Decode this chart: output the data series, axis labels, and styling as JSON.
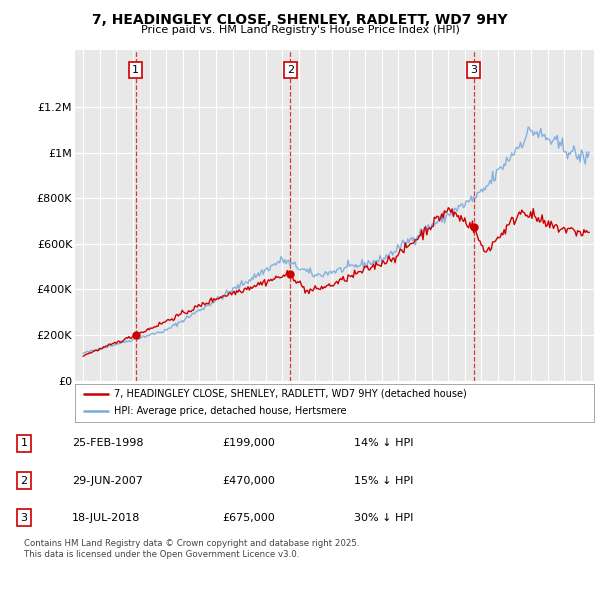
{
  "title": "7, HEADINGLEY CLOSE, SHENLEY, RADLETT, WD7 9HY",
  "subtitle": "Price paid vs. HM Land Registry's House Price Index (HPI)",
  "background_color": "#ffffff",
  "plot_bg_color": "#e8e8e8",
  "grid_color": "#ffffff",
  "hpi_color": "#7aaadd",
  "price_color": "#cc0000",
  "purchases": [
    {
      "num": 1,
      "date_label": "25-FEB-1998",
      "date_x": 1998.15,
      "price": 199000,
      "pct": "14% ↓ HPI"
    },
    {
      "num": 2,
      "date_label": "29-JUN-2007",
      "date_x": 2007.49,
      "price": 470000,
      "pct": "15% ↓ HPI"
    },
    {
      "num": 3,
      "date_label": "18-JUL-2018",
      "date_x": 2018.54,
      "price": 675000,
      "pct": "30% ↓ HPI"
    }
  ],
  "legend_line1": "7, HEADINGLEY CLOSE, SHENLEY, RADLETT, WD7 9HY (detached house)",
  "legend_line2": "HPI: Average price, detached house, Hertsmere",
  "footer": "Contains HM Land Registry data © Crown copyright and database right 2025.\nThis data is licensed under the Open Government Licence v3.0.",
  "ylim": [
    0,
    1450000
  ],
  "yticks": [
    0,
    200000,
    400000,
    600000,
    800000,
    1000000,
    1200000
  ],
  "ytick_labels": [
    "£0",
    "£200K",
    "£400K",
    "£600K",
    "£800K",
    "£1M",
    "£1.2M"
  ],
  "xmin": 1994.5,
  "xmax": 2025.8
}
